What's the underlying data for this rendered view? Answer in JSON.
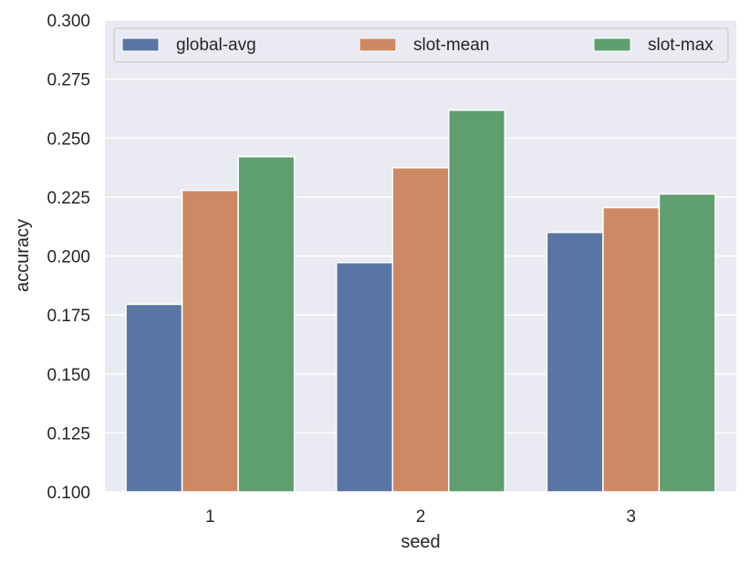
{
  "chart_data": {
    "type": "bar",
    "categories": [
      "1",
      "2",
      "3"
    ],
    "series": [
      {
        "name": "global-avg",
        "values": [
          0.1795,
          0.1972,
          0.21
        ]
      },
      {
        "name": "slot-mean",
        "values": [
          0.2278,
          0.2374,
          0.2205
        ]
      },
      {
        "name": "slot-max",
        "values": [
          0.2421,
          0.2618,
          0.2263
        ]
      }
    ],
    "colors": [
      "#5875a4",
      "#cc8963",
      "#5f9e6e"
    ],
    "background": "#eaeaf2",
    "grid": true,
    "xlabel": "seed",
    "ylabel": "accuracy",
    "ylim": [
      0.1,
      0.3
    ],
    "yticks": [
      0.1,
      0.125,
      0.15,
      0.175,
      0.2,
      0.225,
      0.25,
      0.275,
      0.3
    ],
    "ytick_labels": [
      "0.100",
      "0.125",
      "0.150",
      "0.175",
      "0.200",
      "0.225",
      "0.250",
      "0.275",
      "0.300"
    ],
    "legend_position": "top"
  }
}
